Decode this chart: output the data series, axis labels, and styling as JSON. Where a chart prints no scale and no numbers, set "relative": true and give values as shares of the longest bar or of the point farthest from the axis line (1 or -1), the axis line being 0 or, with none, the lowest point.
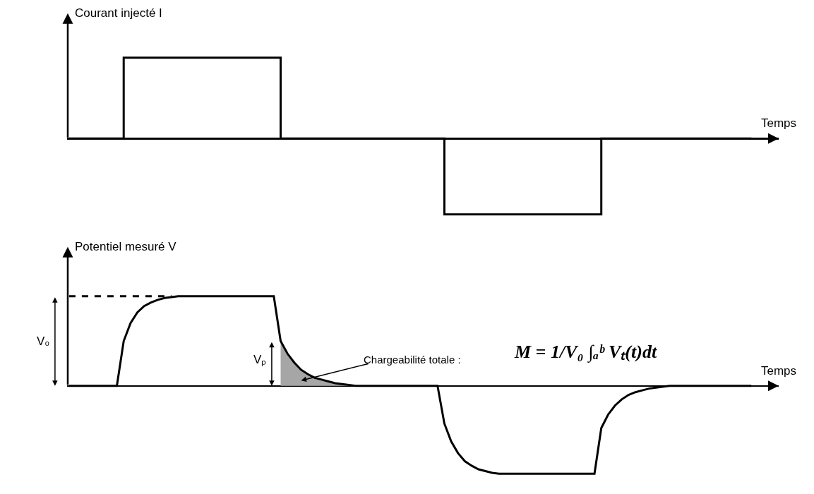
{
  "chart_data": [
    {
      "type": "step",
      "relative": true,
      "ylabel": "Courant injecté I",
      "xlabel": "Temps",
      "categories": [
        null,
        null,
        null,
        null,
        null,
        null,
        null,
        null,
        null,
        null,
        null,
        null,
        null,
        null,
        null,
        null,
        null,
        null,
        null,
        null,
        null,
        null,
        null,
        null,
        null,
        null,
        null,
        null,
        null,
        null,
        null,
        null,
        null,
        null,
        null,
        null,
        null,
        null,
        null,
        null,
        null,
        null,
        null,
        null,
        null,
        null,
        null,
        null,
        null,
        null,
        null,
        null,
        null,
        null,
        null,
        null,
        null,
        null,
        null,
        null,
        null,
        null,
        null,
        null,
        null,
        null,
        null,
        null,
        null,
        null,
        null,
        null,
        null,
        null,
        null,
        null,
        null,
        null,
        null,
        null,
        null,
        null,
        null,
        null,
        null,
        null,
        null,
        null,
        null,
        null,
        null,
        null,
        null,
        null,
        null,
        null,
        null,
        null,
        null,
        null,
        null
      ],
      "series": [
        {
          "color": "#000000",
          "values": [
            0,
            0,
            0,
            0,
            0,
            0,
            0,
            0,
            1,
            1,
            1,
            1,
            1,
            1,
            1,
            1,
            1,
            1,
            1,
            1,
            1,
            1,
            1,
            1,
            1,
            1,
            1,
            1,
            1,
            1,
            1,
            0,
            0,
            0,
            0,
            0,
            0,
            0,
            0,
            0,
            0,
            0,
            0,
            0,
            0,
            0,
            0,
            0,
            0,
            0,
            0,
            0,
            0,
            0,
            0,
            -0.94,
            -0.94,
            -0.94,
            -0.94,
            -0.94,
            -0.94,
            -0.94,
            -0.94,
            -0.94,
            -0.94,
            -0.94,
            -0.94,
            -0.94,
            -0.94,
            -0.94,
            -0.94,
            -0.94,
            -0.94,
            -0.94,
            -0.94,
            -0.94,
            -0.94,
            -0.94,
            0,
            0,
            0,
            0,
            0,
            0,
            0,
            0,
            0,
            0,
            0,
            0,
            0,
            0,
            0,
            0,
            0,
            0,
            0,
            0,
            0,
            0,
            0
          ]
        }
      ]
    },
    {
      "type": "line",
      "relative": true,
      "ylabel": "Potentiel mesuré V",
      "xlabel": "Temps",
      "categories": [
        null,
        null,
        null,
        null,
        null,
        null,
        null,
        null,
        null,
        null,
        null,
        null,
        null,
        null,
        null,
        null,
        null,
        null,
        null,
        null,
        null,
        null,
        null,
        null,
        null,
        null,
        null,
        null,
        null,
        null,
        null,
        null,
        null,
        null,
        null,
        null,
        null,
        null,
        null,
        null,
        null,
        null,
        null,
        null,
        null,
        null,
        null,
        null,
        null,
        null,
        null,
        null,
        null,
        null,
        null,
        null,
        null,
        null,
        null,
        null,
        null,
        null,
        null,
        null,
        null,
        null,
        null,
        null,
        null,
        null,
        null,
        null,
        null,
        null,
        null,
        null,
        null,
        null,
        null,
        null,
        null,
        null,
        null,
        null,
        null,
        null,
        null,
        null,
        null,
        null,
        null,
        null,
        null,
        null,
        null,
        null,
        null,
        null,
        null,
        null,
        null
      ],
      "series": [
        {
          "type": "area",
          "color": "#a6a6a6",
          "values": [
            null,
            null,
            null,
            null,
            null,
            null,
            null,
            null,
            null,
            null,
            null,
            null,
            null,
            null,
            null,
            null,
            null,
            null,
            null,
            null,
            null,
            null,
            null,
            null,
            null,
            null,
            null,
            null,
            null,
            null,
            null,
            0.5,
            0.36,
            0.26,
            0.18,
            0.13,
            0.09,
            0.07,
            0.05,
            0.03,
            0.02,
            0.01,
            null,
            null,
            null,
            null,
            null,
            null,
            null,
            null,
            null,
            null,
            null,
            null,
            null,
            null,
            null,
            null,
            null,
            null,
            null,
            null,
            null,
            null,
            null,
            null,
            null,
            null,
            null,
            null,
            null,
            null,
            null,
            null,
            null,
            null,
            null,
            null,
            null,
            null,
            null,
            null,
            null,
            null,
            null,
            null,
            null,
            null,
            null,
            null,
            null,
            null,
            null,
            null,
            null,
            null,
            null,
            null,
            null,
            null,
            null
          ]
        },
        {
          "color": "#000000",
          "values": [
            0,
            0,
            0,
            0,
            0,
            0,
            0,
            0,
            0.5,
            0.7,
            0.82,
            0.89,
            0.93,
            0.96,
            0.98,
            0.99,
            1,
            1,
            1,
            1,
            1,
            1,
            1,
            1,
            1,
            1,
            1,
            1,
            1,
            1,
            1,
            0.5,
            0.36,
            0.26,
            0.18,
            0.13,
            0.09,
            0.07,
            0.05,
            0.03,
            0.02,
            0.01,
            0,
            0,
            0,
            0,
            0,
            0,
            0,
            0,
            0,
            0,
            0,
            0,
            0,
            -0.42,
            -0.62,
            -0.75,
            -0.84,
            -0.89,
            -0.93,
            -0.95,
            -0.97,
            -0.98,
            -0.98,
            -0.98,
            -0.98,
            -0.98,
            -0.98,
            -0.98,
            -0.98,
            -0.98,
            -0.98,
            -0.98,
            -0.98,
            -0.98,
            -0.98,
            -0.98,
            -0.47,
            -0.32,
            -0.22,
            -0.15,
            -0.1,
            -0.07,
            -0.05,
            -0.03,
            -0.02,
            -0.01,
            0,
            0,
            0,
            0,
            0,
            0,
            0,
            0,
            0,
            0,
            0,
            0,
            0
          ]
        },
        {
          "color": "#000000",
          "line_style": "dashed",
          "values": [
            1,
            1,
            1,
            1,
            1,
            1,
            1,
            1,
            1,
            1,
            1,
            1,
            1,
            1,
            1,
            1,
            null,
            null,
            null,
            null,
            null,
            null,
            null,
            null,
            null,
            null,
            null,
            null,
            null,
            null,
            null,
            null,
            null,
            null,
            null,
            null,
            null,
            null,
            null,
            null,
            null,
            null,
            null,
            null,
            null,
            null,
            null,
            null,
            null,
            null,
            null,
            null,
            null,
            null,
            null,
            null,
            null,
            null,
            null,
            null,
            null,
            null,
            null,
            null,
            null,
            null,
            null,
            null,
            null,
            null,
            null,
            null,
            null,
            null,
            null,
            null,
            null,
            null,
            null,
            null,
            null,
            null,
            null,
            null,
            null,
            null,
            null,
            null,
            null,
            null,
            null,
            null,
            null,
            null,
            null,
            null,
            null,
            null,
            null,
            null,
            null
          ]
        }
      ],
      "annotations": [
        "V₀",
        "Vₚ",
        "Chargeabilité totale :",
        "M = 1/V₀ ∫ₐᵇ Vₜ(t)dt"
      ]
    }
  ]
}
